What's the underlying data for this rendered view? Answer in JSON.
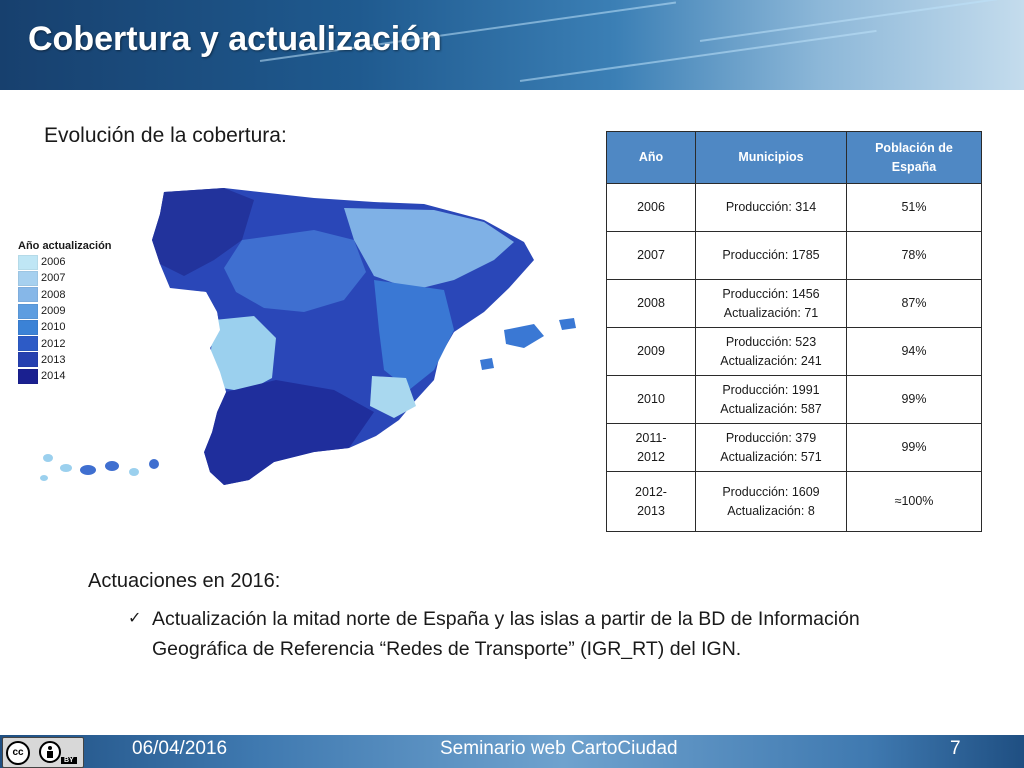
{
  "slide": {
    "title": "Cobertura y actualización",
    "section_title": "Evolución de la cobertura:"
  },
  "legend": {
    "title": "Año actualización",
    "items": [
      {
        "label": "2006",
        "color": "#bfe6f5"
      },
      {
        "label": "2007",
        "color": "#a6d0ef"
      },
      {
        "label": "2008",
        "color": "#86b7e8"
      },
      {
        "label": "2009",
        "color": "#5d9de0"
      },
      {
        "label": "2010",
        "color": "#3b82d6"
      },
      {
        "label": "2012",
        "color": "#2d5bc6"
      },
      {
        "label": "2013",
        "color": "#2640b0"
      },
      {
        "label": "2014",
        "color": "#1a2090"
      }
    ]
  },
  "table": {
    "headers": [
      "Año",
      "Municipios",
      "Población de España"
    ],
    "rows": [
      {
        "year": "2006",
        "municipios": [
          "Producción: 314"
        ],
        "poblacion": "51%"
      },
      {
        "year": "2007",
        "municipios": [
          "Producción: 1785"
        ],
        "poblacion": "78%"
      },
      {
        "year": "2008",
        "municipios": [
          "Producción: 1456",
          "Actualización: 71"
        ],
        "poblacion": "87%"
      },
      {
        "year": "2009",
        "municipios": [
          "Producción: 523",
          "Actualización: 241"
        ],
        "poblacion": "94%"
      },
      {
        "year": "2010",
        "municipios": [
          "Producción: 1991",
          "Actualización: 587"
        ],
        "poblacion": "99%"
      },
      {
        "year": "2011-2012",
        "municipios": [
          "Producción: 379",
          "Actualización: 571"
        ],
        "poblacion": "99%"
      },
      {
        "year": "2012-2013",
        "municipios": [
          "Producción: 1609",
          "Actualización: 8"
        ],
        "poblacion": "≈100%"
      }
    ]
  },
  "actuaciones": {
    "title": "Actuaciones en 2016:",
    "bullet_line1": "Actualización la mitad norte de España y las islas a partir de la BD de Información",
    "bullet_line2": "Geográfica de Referencia “Redes de Transporte” (IGR_RT) del IGN."
  },
  "footer": {
    "date": "06/04/2016",
    "event": "Seminario web CartoCiudad",
    "page": "7",
    "license_label": "BY"
  }
}
